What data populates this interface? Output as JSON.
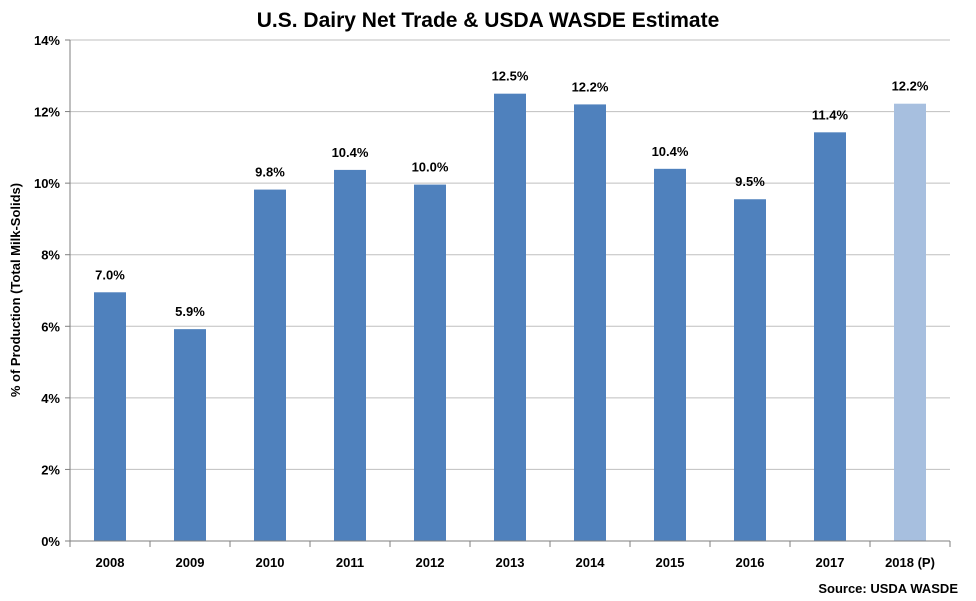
{
  "chart_data": {
    "type": "bar",
    "title": "U.S. Dairy Net Trade & USDA WASDE Estimate",
    "xlabel": "",
    "ylabel": "% of Production (Total Milk-Solids)",
    "ylim": [
      0,
      14
    ],
    "y_ticks": [
      "0%",
      "2%",
      "4%",
      "6%",
      "8%",
      "10%",
      "12%",
      "14%"
    ],
    "y_tick_values": [
      0,
      2,
      4,
      6,
      8,
      10,
      12,
      14
    ],
    "categories": [
      "2008",
      "2009",
      "2010",
      "2011",
      "2012",
      "2013",
      "2014",
      "2015",
      "2016",
      "2017",
      "2018 (P)"
    ],
    "values": [
      6.95,
      5.92,
      9.82,
      10.37,
      9.96,
      12.5,
      12.2,
      10.4,
      9.55,
      11.42,
      12.22
    ],
    "data_labels": [
      "7.0%",
      "5.9%",
      "9.8%",
      "10.4%",
      "10.0%",
      "12.5%",
      "12.2%",
      "10.4%",
      "9.5%",
      "11.4%",
      "12.2%"
    ],
    "projected": [
      false,
      false,
      false,
      false,
      false,
      false,
      false,
      false,
      false,
      false,
      true
    ],
    "grid": true,
    "colors": {
      "bar": "#4f81bd",
      "bar_projected": "#a7bfdf",
      "grid": "#bfbfbf",
      "axis": "#7f7f7f"
    }
  },
  "source": "Source: USDA WASDE"
}
